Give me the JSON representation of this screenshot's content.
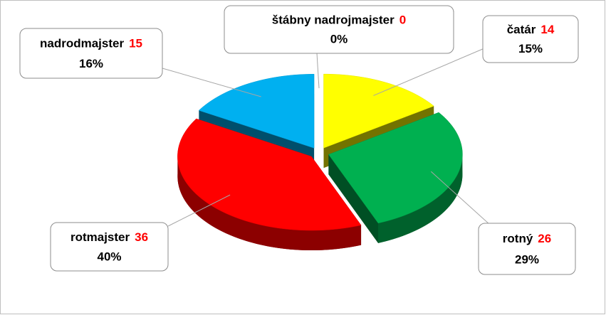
{
  "chart_data": {
    "type": "pie3d",
    "categories": [
      "štábny nadrojmajster",
      "čatár",
      "rotný",
      "rotmajster",
      "nadrodmajster"
    ],
    "values": [
      0,
      14,
      26,
      36,
      15
    ],
    "percent_labels": [
      "0%",
      "15%",
      "29%",
      "40%",
      "16%"
    ],
    "colors": [
      "#7f7f7f",
      "#ffff00",
      "#00b050",
      "#ff0000",
      "#00b0f0"
    ]
  }
}
